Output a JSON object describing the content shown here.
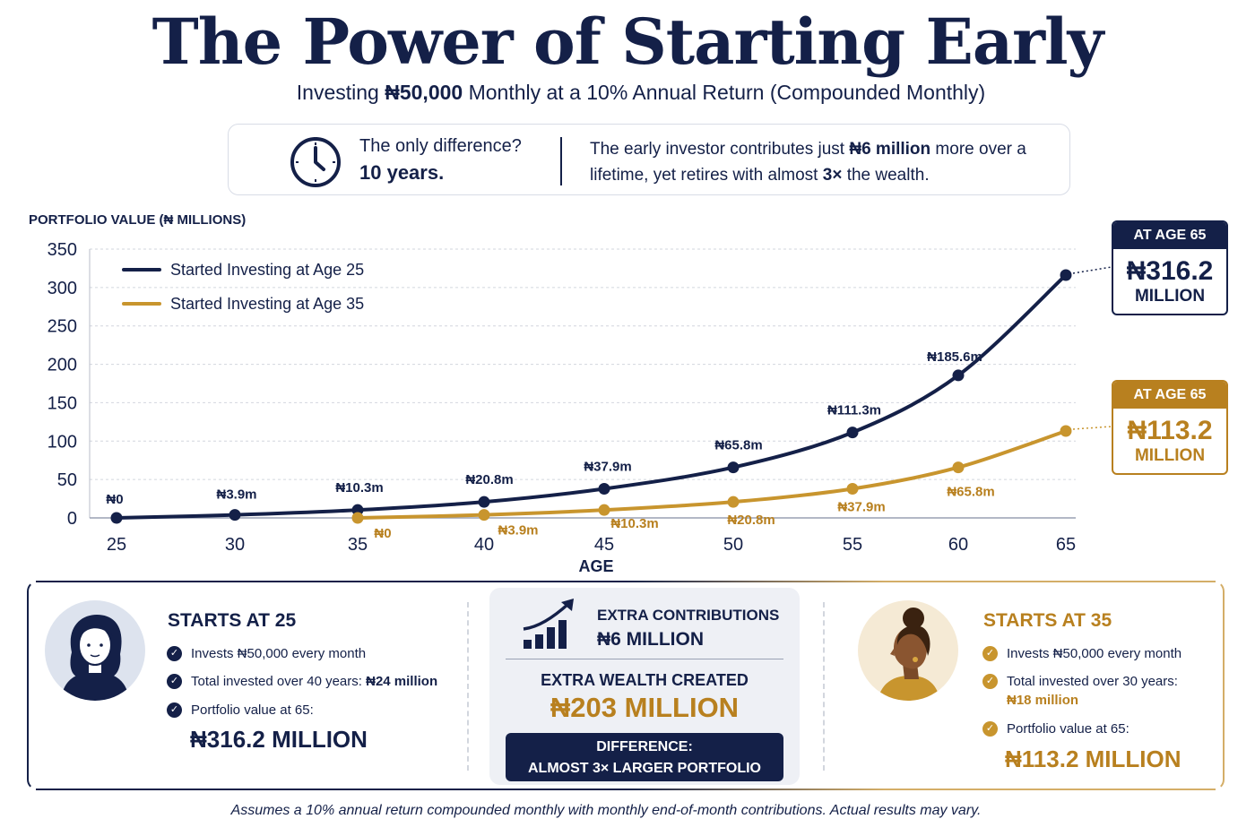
{
  "header": {
    "title": "The Power of Starting Early",
    "subtitle_pre": "Investing ",
    "subtitle_bold": "₦50,000",
    "subtitle_post": " Monthly at a 10% Annual Return (Compounded Monthly)"
  },
  "info": {
    "question": "The only difference?",
    "answer": "10 years.",
    "text_1": "The early investor contributes just ",
    "text_bold_1": "₦6 million",
    "text_2": " more over a lifetime, yet retires with almost ",
    "text_bold_2": "3×",
    "text_3": " the wealth."
  },
  "chart_data": {
    "type": "line",
    "ylabel": "PORTFOLIO VALUE (₦ MILLIONS)",
    "xlabel": "AGE",
    "ylim": [
      0,
      350
    ],
    "yticks": [
      "0",
      "50",
      "100",
      "150",
      "200",
      "250",
      "300",
      "350"
    ],
    "xticks": [
      "25",
      "30",
      "35",
      "40",
      "45",
      "50",
      "55",
      "60",
      "65"
    ],
    "grid": "horizontal dashed",
    "legend_position": "top-left",
    "series": [
      {
        "name": "Started Investing at Age 25",
        "color": "#142048",
        "x": [
          25,
          30,
          35,
          40,
          45,
          50,
          55,
          60,
          65
        ],
        "y": [
          0,
          3.9,
          10.3,
          20.8,
          37.9,
          65.8,
          111.3,
          185.6,
          316.2
        ],
        "labels": [
          "₦0",
          "₦3.9m",
          "₦10.3m",
          "₦20.8m",
          "₦37.9m",
          "₦65.8m",
          "₦111.3m",
          "₦185.6m",
          ""
        ]
      },
      {
        "name": "Started Investing at Age 35",
        "color": "#c8952e",
        "x": [
          35,
          40,
          45,
          50,
          55,
          60,
          65
        ],
        "y": [
          0,
          3.9,
          10.3,
          20.8,
          37.9,
          65.8,
          113.2
        ],
        "labels": [
          "₦0",
          "₦3.9m",
          "₦10.3m",
          "₦20.8m",
          "₦37.9m",
          "₦65.8m",
          ""
        ]
      }
    ]
  },
  "callouts": {
    "early": {
      "head": "AT AGE 65",
      "value": "₦316.2",
      "unit": "MILLION"
    },
    "late": {
      "head": "AT AGE 65",
      "value": "₦113.2",
      "unit": "MILLION"
    }
  },
  "early_card": {
    "title": "STARTS AT 25",
    "b1": "Invests ₦50,000 every month",
    "b2_pre": "Total invested over 40 years: ",
    "b2_bold": "₦24 million",
    "b3": "Portfolio value at 65:",
    "value": "₦316.2 MILLION"
  },
  "center": {
    "l1": "EXTRA CONTRIBUTIONS",
    "l2": "₦6 MILLION",
    "l3": "EXTRA WEALTH CREATED",
    "l4": "₦203 MILLION",
    "banner_1": "DIFFERENCE:",
    "banner_2": "ALMOST 3× LARGER PORTFOLIO"
  },
  "late_card": {
    "title": "STARTS AT 35",
    "b1": "Invests ₦50,000 every month",
    "b2": "Total invested over 30 years:",
    "b2_bold": "₦18 million",
    "b3": "Portfolio value at 65:",
    "value": "₦113.2 MILLION"
  },
  "footnote": "Assumes a 10% annual return compounded monthly with monthly end-of-month contributions. Actual results may vary.",
  "icons": [
    "clock-icon",
    "chart-growth-icon",
    "check-icon",
    "woman-avatar-icon"
  ]
}
